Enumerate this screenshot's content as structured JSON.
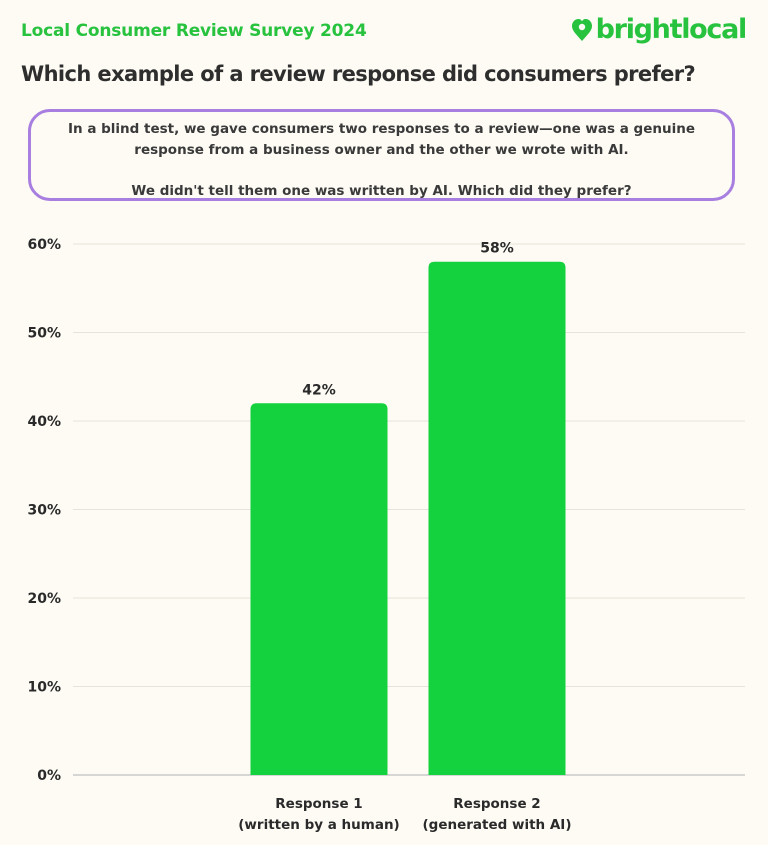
{
  "header": {
    "survey_title": "Local Consumer Review Survey 2024",
    "brand_name": "brightlocal",
    "question": "Which example of a review response did consumers prefer?"
  },
  "intro": {
    "line1": "In a blind test, we gave consumers two responses to a review—one was a genuine",
    "line2": "response from a business owner and the other we wrote with AI.",
    "line3": "We didn't tell them one was written by AI. Which did they prefer?"
  },
  "colors": {
    "brand_green": "#27c23e",
    "bar_green": "#14d13e",
    "box_border": "#a87fe0",
    "background": "#fdfbf4"
  },
  "chart_data": {
    "type": "bar",
    "categories": [
      [
        "Response 1",
        "(written by a human)"
      ],
      [
        "Response 2",
        "(generated with AI)"
      ]
    ],
    "values": [
      42,
      58
    ],
    "value_labels": [
      "42%",
      "58%"
    ],
    "ylim": [
      0,
      60
    ],
    "yticks": [
      0,
      10,
      20,
      30,
      40,
      50,
      60
    ],
    "ytick_labels": [
      "0%",
      "10%",
      "20%",
      "30%",
      "40%",
      "50%",
      "60%"
    ],
    "title": "",
    "xlabel": "",
    "ylabel": "",
    "grid": true,
    "legend": "none"
  }
}
